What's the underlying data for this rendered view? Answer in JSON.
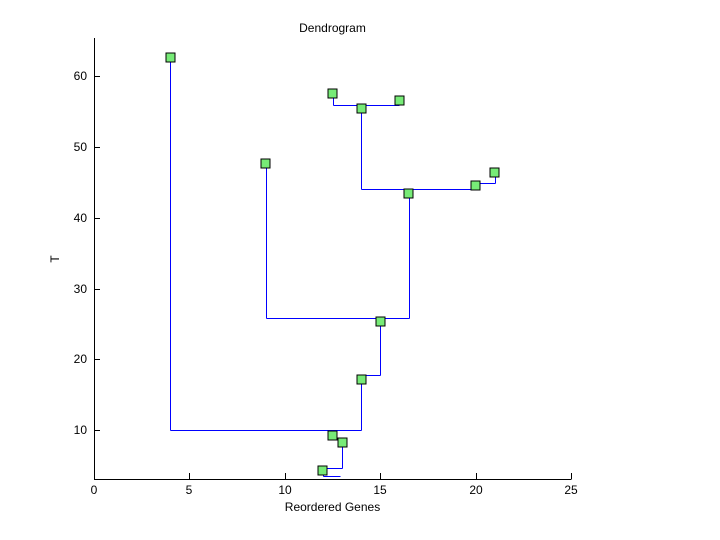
{
  "figure": {
    "background": "#ffffff"
  },
  "chart_data": {
    "type": "line",
    "subtype": "dendrogram",
    "title": "Dendrogram",
    "xlabel": "Reordered Genes",
    "ylabel": "T",
    "xlim": [
      0,
      25
    ],
    "ylim": [
      3.1,
      65.4
    ],
    "xticks": [
      0,
      5,
      10,
      15,
      20,
      25
    ],
    "yticks": [
      10,
      20,
      30,
      40,
      50,
      60
    ],
    "grid": false,
    "legend": "none",
    "line_color": "#0000ff",
    "axis_color": "#000000",
    "marker_style": {
      "shape": "square",
      "fill": "#77eb77",
      "edge": "#000000",
      "size": 9
    },
    "nodes": [
      {
        "x": 4.0,
        "y": 62.7
      },
      {
        "x": 12.5,
        "y": 57.6
      },
      {
        "x": 14.0,
        "y": 55.5
      },
      {
        "x": 16.0,
        "y": 56.6
      },
      {
        "x": 9.0,
        "y": 47.7
      },
      {
        "x": 21.0,
        "y": 46.4
      },
      {
        "x": 20.0,
        "y": 44.6
      },
      {
        "x": 16.5,
        "y": 43.5
      },
      {
        "x": 15.0,
        "y": 25.3
      },
      {
        "x": 14.0,
        "y": 17.2
      },
      {
        "x": 12.5,
        "y": 9.3
      },
      {
        "x": 13.0,
        "y": 8.3
      },
      {
        "x": 12.0,
        "y": 4.35
      }
    ],
    "segments": [
      {
        "x1": 4,
        "y1": 62.7,
        "x2": 4,
        "y2": 10
      },
      {
        "x1": 4,
        "y1": 10,
        "x2": 14,
        "y2": 10
      },
      {
        "x1": 14,
        "y1": 10,
        "x2": 14,
        "y2": 17.8
      },
      {
        "x1": 14,
        "y1": 17.8,
        "x2": 15,
        "y2": 17.8
      },
      {
        "x1": 15,
        "y1": 17.8,
        "x2": 15,
        "y2": 25.8
      },
      {
        "x1": 9,
        "y1": 25.8,
        "x2": 16.5,
        "y2": 25.8
      },
      {
        "x1": 9,
        "y1": 25.8,
        "x2": 9,
        "y2": 47.7
      },
      {
        "x1": 16.5,
        "y1": 25.8,
        "x2": 16.5,
        "y2": 43.5
      },
      {
        "x1": 14,
        "y1": 44.0,
        "x2": 20,
        "y2": 44.0
      },
      {
        "x1": 14,
        "y1": 44.0,
        "x2": 14,
        "y2": 55.5
      },
      {
        "x1": 12.5,
        "y1": 56.0,
        "x2": 16,
        "y2": 56.0
      },
      {
        "x1": 12.5,
        "y1": 56.0,
        "x2": 12.5,
        "y2": 57.6
      },
      {
        "x1": 16,
        "y1": 56.0,
        "x2": 16,
        "y2": 56.6
      },
      {
        "x1": 20,
        "y1": 44.6,
        "x2": 20,
        "y2": 44.9
      },
      {
        "x1": 20,
        "y1": 44.9,
        "x2": 21,
        "y2": 44.9
      },
      {
        "x1": 21,
        "y1": 44.9,
        "x2": 21,
        "y2": 46.4
      },
      {
        "x1": 12.5,
        "y1": 9.3,
        "x2": 12.5,
        "y2": 8.7
      },
      {
        "x1": 12.5,
        "y1": 8.7,
        "x2": 13,
        "y2": 8.7
      },
      {
        "x1": 13,
        "y1": 8.7,
        "x2": 13,
        "y2": 4.6
      },
      {
        "x1": 12,
        "y1": 4.6,
        "x2": 13,
        "y2": 4.6
      },
      {
        "x1": 12,
        "y1": 4.6,
        "x2": 12,
        "y2": 3.5
      },
      {
        "x1": 12,
        "y1": 3.5,
        "x2": 12.9,
        "y2": 3.5
      }
    ]
  }
}
